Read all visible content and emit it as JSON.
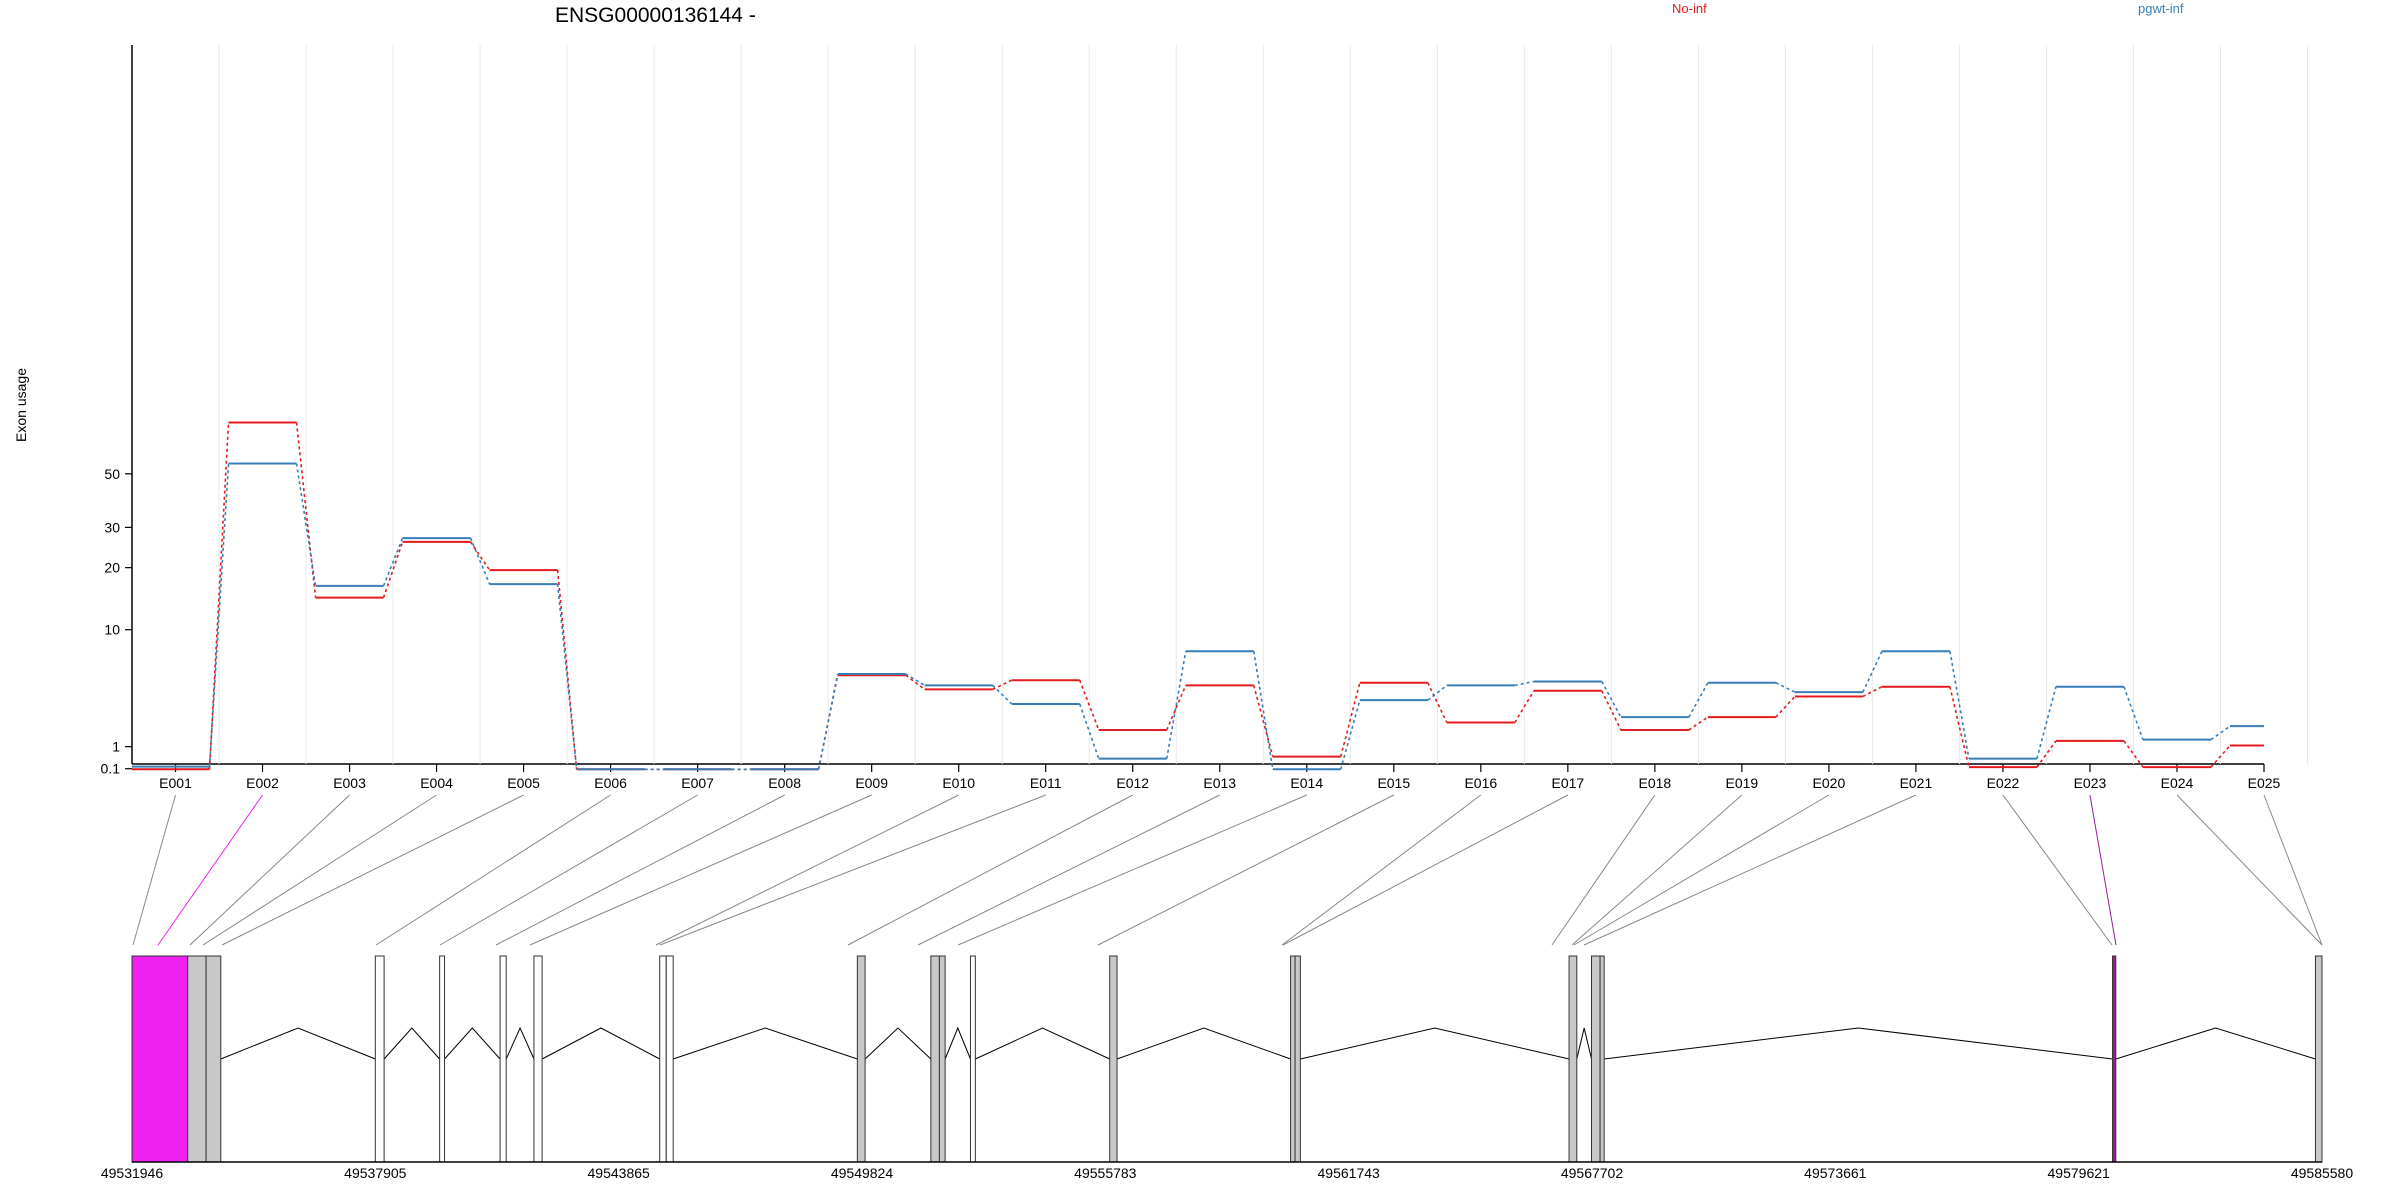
{
  "chart_data": {
    "type": "line",
    "title": "ENSG00000136144 -",
    "ylabel": "Exon usage",
    "y_scale": "log",
    "y_ticks": [
      "0.1",
      "1",
      "10",
      "20",
      "30",
      "50"
    ],
    "legend_placement": "top",
    "categories": [
      "E001",
      "E002",
      "E003",
      "E004",
      "E005",
      "E006",
      "E007",
      "E008",
      "E009",
      "E010",
      "E011",
      "E012",
      "E013",
      "E014",
      "E015",
      "E016",
      "E017",
      "E018",
      "E019",
      "E020",
      "E021",
      "E022",
      "E023",
      "E024",
      "E025"
    ],
    "series": [
      {
        "name": "No-inf",
        "color": "#e41a1c",
        "values": [
          0.08,
          80,
          14.5,
          26,
          19.5,
          0.08,
          0.08,
          0.08,
          5.4,
          4.3,
          5.0,
          1.8,
          4.6,
          0.57,
          4.8,
          2.2,
          4.2,
          1.8,
          2.5,
          3.8,
          4.5,
          0.16,
          1.26,
          0.16,
          1.05
        ]
      },
      {
        "name": "pgwt-inf",
        "color": "#377eb8",
        "values": [
          0.18,
          55,
          16.5,
          27,
          16.8,
          0.08,
          0.08,
          0.08,
          5.5,
          4.6,
          3.3,
          0.49,
          7.6,
          0.08,
          3.55,
          4.6,
          4.9,
          2.5,
          4.8,
          4.1,
          7.6,
          0.49,
          4.5,
          1.32,
          2.0
        ]
      }
    ],
    "exon_colors": [
      "gray",
      "magenta",
      "gray",
      "gray",
      "gray",
      "gray",
      "gray",
      "gray",
      "gray",
      "gray",
      "gray",
      "gray",
      "gray",
      "gray",
      "gray",
      "gray",
      "gray",
      "gray",
      "gray",
      "gray",
      "gray",
      "gray",
      "purple",
      "gray",
      "gray"
    ],
    "genomic_axis_labels": [
      "49531946",
      "49537905",
      "49543865",
      "49549824",
      "49555783",
      "49561743",
      "49567702",
      "49573661",
      "49579621",
      "49585580"
    ],
    "highlight_color": "#f020f0",
    "highlight_purple": "#8b1a8b"
  }
}
